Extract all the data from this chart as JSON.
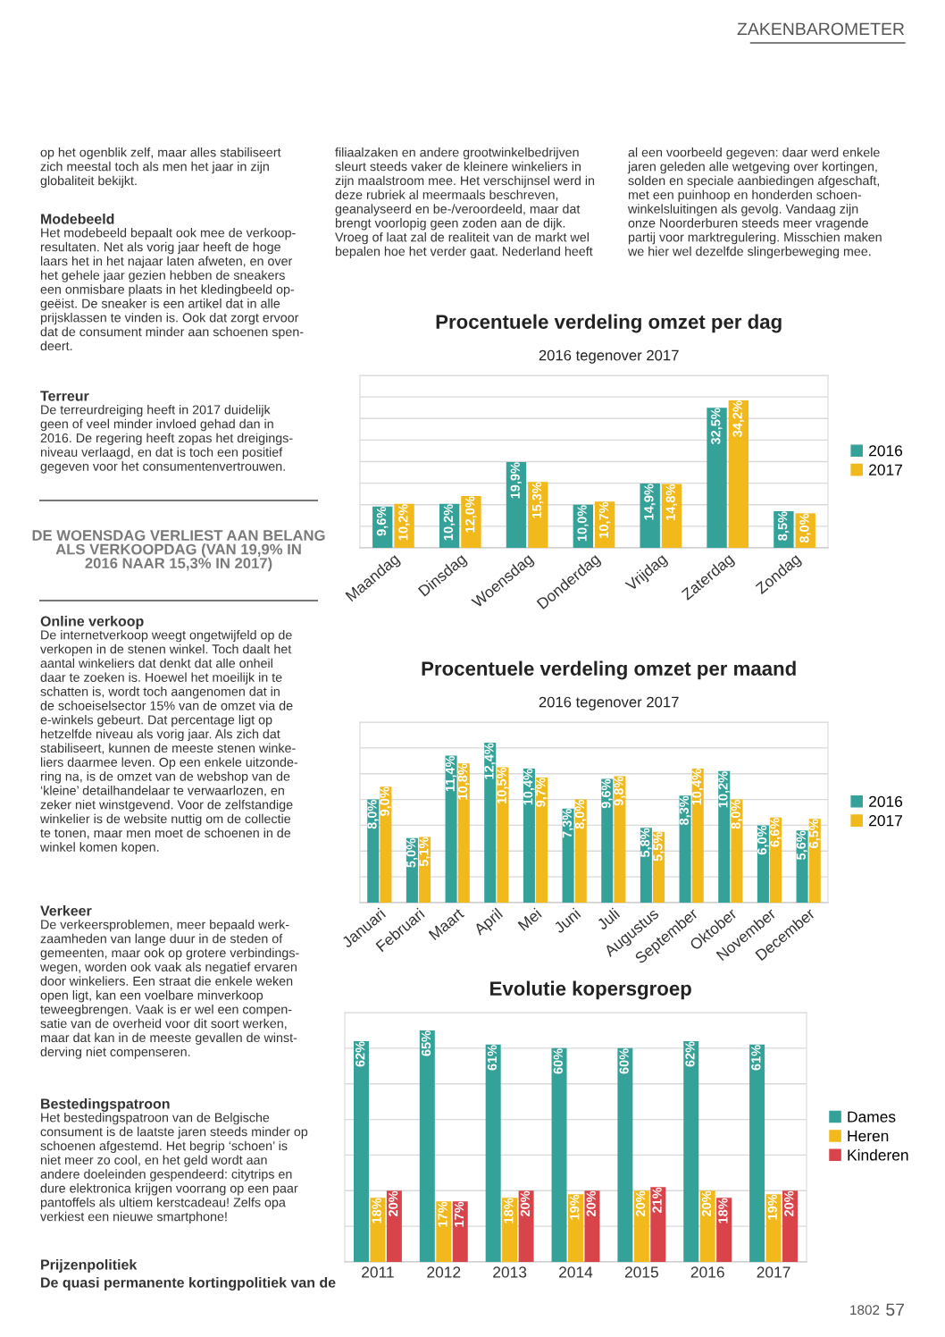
{
  "chart_data": [
    {
      "type": "other",
      "title": "ZAKENBAROMETER"
    },
    {
      "type": "other",
      "annotations": [
        "op het ogenblik zelf, maar alles stabiliseert\nzich meestal toch als men het jaar in zijn\nglobaliteit bekijkt.",
        "Modebeeld",
        "Het modebeeld bepaalt ook mee de verkoop-\nresultaten. Net als vorig jaar heeft de hoge\nlaars het in het najaar laten afweten, en over\nhet gehele jaar gezien hebben de sneakers\neen onmisbare plaats in het kledingbeeld op-\ngeëist. De sneaker is een artikel dat in alle\nprijsklassen te vinden is. Ook dat zorgt ervoor\ndat de consument minder aan schoenen spen-\ndeert.",
        "Terreur",
        "De terreurdreiging heeft in 2017 duidelijk\ngeen of veel minder invloed gehad dan in\n2016. De regering heeft zopas het dreigings-\nniveau verlaagd, en dat is toch een positief\ngegeven voor het consumentenvertrouwen."
      ]
    },
    {
      "type": "other",
      "title": "DE WOENSDAG VERLIEST AAN BELANG\nALS VERKOOPDAG (VAN 19,9% IN\n2016 NAAR 15,3% IN 2017)"
    },
    {
      "type": "other",
      "annotations": [
        "Online verkoop",
        "De internetverkoop weegt ongetwijfeld op de\nverkopen in de stenen winkel. Toch daalt het\naantal winkeliers dat denkt dat alle onheil\ndaar te zoeken is. Hoewel het moeilijk in te\nschatten is, wordt toch aangenomen dat in\nde schoeiselsector 15% van de omzet via de\ne-winkels gebeurt. Dat percentage ligt op\nhetzelfde niveau als vorig jaar. Als zich dat\nstabiliseert, kunnen de meeste stenen winke-\nliers daarmee leven. Op een enkele uitzonde-\nring na, is de omzet van de webshop van de\n‘kleine’ detailhandelaar te verwaarlozen, en\nzeker niet winstgevend. Voor de zelfstandige\nwinkelier is de website nuttig om de collectie\nte tonen, maar men moet de schoenen in de\nwinkel komen kopen.",
        "Verkeer",
        "De verkeersproblemen, meer bepaald werk-\nzaamheden van lange duur in de steden of\ngemeenten, maar ook op grotere verbindings-\nwegen, worden ook vaak als negatief ervaren\ndoor winkeliers. Een straat die enkele weken\nopen ligt, kan een voelbare minverkoop\nteweegbrengen. Vaak is er wel een compen-\nsatie van de overheid voor dit soort werken,\nmaar dat kan in de meeste gevallen de winst-\nderving niet compenseren.",
        "Bestedingspatroon",
        "Het bestedingspatroon van de Belgische\nconsument is de laatste jaren steeds minder op\nschoenen afgestemd. Het begrip ‘schoen’ is\nniet meer zo cool, en het geld wordt aan\nandere doeleinden gespendeerd: citytrips en\ndure elektronica krijgen voorrang op een paar\npantoffels als ultiem kerstcadeau! Zelfs opa\nverkiest een nieuwe smartphone!",
        "Prijzenpolitiek",
        "De quasi permanente kortingpolitiek van de"
      ]
    },
    {
      "type": "other",
      "annotations": [
        "filiaalzaken en andere grootwinkelbedrijven\nsleurt steeds vaker de kleinere winkeliers in\nzijn maalstroom mee. Het verschijnsel werd in\ndeze rubriek al meermaals beschreven,\ngeanalyseerd en be-/veroordeeld, maar dat\nbrengt voorlopig geen zoden aan de dijk.\nVroeg of laat zal de realiteit van de markt wel\nbepalen hoe het verder gaat. Nederland heeft"
      ]
    },
    {
      "type": "other",
      "annotations": [
        "al een voorbeeld gegeven: daar werd enkele\njaren geleden alle wetgeving over kortingen,\nsolden en speciale aanbiedingen afgeschaft,\nmet een puinhoop en honderden schoen-\nwinkelsluitingen als gevolg. Vandaag zijn\nonze Noorderburen steeds meer vragende\npartij voor marktregulering. Misschien maken\nwe hier wel dezelfde slingerbeweging mee."
      ]
    },
    {
      "type": "bar",
      "title": "Procentuele verdeling omzet per dag",
      "subtitle": "2016 tegenover 2017",
      "categories": [
        "Maandag",
        "Dinsdag",
        "Woensdag",
        "Donderdag",
        "Vrijdag",
        "Zaterdag",
        "Zondag"
      ],
      "series": [
        {
          "name": "2016",
          "color": "#35a29a",
          "values": [
            9.6,
            10.2,
            19.9,
            10.0,
            14.9,
            32.5,
            8.5
          ],
          "value_labels": [
            "9,6%",
            "10,2%",
            "19,9%",
            "10,0%",
            "14,9%",
            "32,5%",
            "8,5%"
          ]
        },
        {
          "name": "2017",
          "color": "#f2b91d",
          "values": [
            10.2,
            12.0,
            15.3,
            10.7,
            14.8,
            34.2,
            8.0
          ],
          "value_labels": [
            "10,2%",
            "12,0%",
            "15,3%",
            "10,7%",
            "14,8%",
            "34,2%",
            "8,0%"
          ]
        }
      ],
      "ylim": [
        0,
        40
      ],
      "yticks": [
        {
          "value": 0,
          "label": null
        },
        {
          "value": 5,
          "label": null
        },
        {
          "value": 10,
          "label": null
        },
        {
          "value": 15,
          "label": null
        },
        {
          "value": 20,
          "label": null
        },
        {
          "value": 25,
          "label": null
        },
        {
          "value": 30,
          "label": null
        },
        {
          "value": 35,
          "label": null
        },
        {
          "value": 40,
          "label": null
        }
      ],
      "grid": "y",
      "legend": "right",
      "tick_labels": "x"
    },
    {
      "type": "bar",
      "title": "Procentuele verdeling omzet per maand",
      "subtitle": "2016 tegenover 2017",
      "categories": [
        "Januari",
        "Februari",
        "Maart",
        "April",
        "Mei",
        "Juni",
        "Juli",
        "Augustus",
        "September",
        "Oktober",
        "November",
        "December"
      ],
      "series": [
        {
          "name": "2016",
          "color": "#35a29a",
          "values": [
            8.0,
            5.0,
            11.4,
            12.4,
            10.4,
            7.3,
            9.6,
            5.8,
            8.3,
            10.2,
            6.0,
            5.6
          ],
          "value_labels": [
            "8,0%",
            "5,0%",
            "11,4%",
            "12,4%",
            "10,4%",
            "7,3%",
            "9,6%",
            "5,8%",
            "8,3%",
            "10,2%",
            "6,0%",
            "5,6%"
          ]
        },
        {
          "name": "2017",
          "color": "#f2b91d",
          "values": [
            9.0,
            5.1,
            10.8,
            10.5,
            9.7,
            8.0,
            9.8,
            5.5,
            10.4,
            8.0,
            6.6,
            6.5
          ],
          "value_labels": [
            "9,0%",
            "5,1%",
            "10,8%",
            "10,5%",
            "9,7%",
            "8,0%",
            "9,8%",
            "5,5%",
            "10,4%",
            "8,0%",
            "6,6%",
            "6,5%"
          ]
        }
      ],
      "ylim": [
        0,
        14
      ],
      "yticks": [
        {
          "value": 0,
          "label": null
        },
        {
          "value": 2,
          "label": null
        },
        {
          "value": 4,
          "label": null
        },
        {
          "value": 6,
          "label": null
        },
        {
          "value": 8,
          "label": null
        },
        {
          "value": 10,
          "label": null
        },
        {
          "value": 12,
          "label": null
        },
        {
          "value": 14,
          "label": null
        }
      ],
      "grid": "y",
      "legend": "right",
      "tick_labels": "x"
    },
    {
      "type": "bar",
      "title": "Evolutie kopersgroep",
      "categories": [
        "2011",
        "2012",
        "2013",
        "2014",
        "2015",
        "2016",
        "2017"
      ],
      "series": [
        {
          "name": "Dames",
          "color": "#35a29a",
          "values": [
            62,
            65,
            61,
            60,
            60,
            62,
            61
          ],
          "value_labels": [
            "62%",
            "65%",
            "61%",
            "60%",
            "60%",
            "62%",
            "61%"
          ]
        },
        {
          "name": "Heren",
          "color": "#f2b91d",
          "values": [
            18,
            17,
            18,
            19,
            20,
            20,
            19
          ],
          "value_labels": [
            "18%",
            "17%",
            "18%",
            "19%",
            "20%",
            "20%",
            "19%"
          ]
        },
        {
          "name": "Kinderen",
          "color": "#d9434a",
          "values": [
            20,
            17,
            20,
            20,
            21,
            18,
            20
          ],
          "value_labels": [
            "20%",
            "17%",
            "20%",
            "20%",
            "21%",
            "18%",
            "20%"
          ]
        }
      ],
      "ylim": [
        0,
        70
      ],
      "yticks": [
        {
          "value": 0,
          "label": null
        },
        {
          "value": 10,
          "label": null
        },
        {
          "value": 20,
          "label": null
        },
        {
          "value": 30,
          "label": null
        },
        {
          "value": 40,
          "label": null
        },
        {
          "value": 50,
          "label": null
        },
        {
          "value": 60,
          "label": null
        },
        {
          "value": 70,
          "label": null
        }
      ],
      "grid": "y",
      "legend": "right",
      "tick_labels": "x"
    },
    {
      "type": "other",
      "annotations": [
        "1802",
        "57"
      ]
    }
  ]
}
